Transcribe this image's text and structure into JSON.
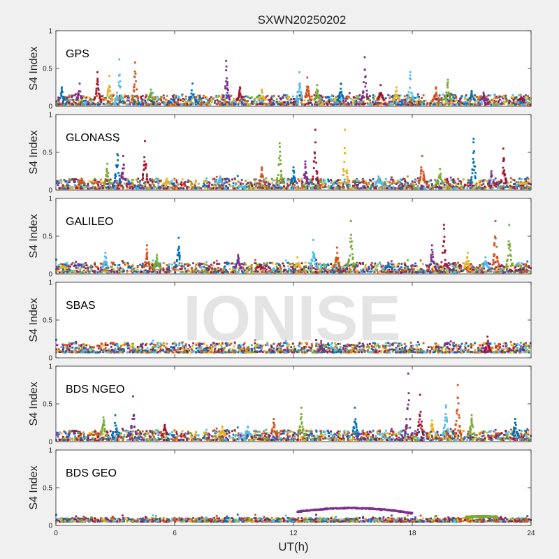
{
  "chart_data": {
    "type": "scatter",
    "title": "SXWN20250202",
    "xlabel": "UT(h)",
    "ylabel": "S4 Index",
    "xlim": [
      0,
      24
    ],
    "ylim": [
      0,
      1
    ],
    "xticks": [
      "0",
      "6",
      "12",
      "18",
      "24"
    ],
    "yticks": [
      "0",
      "0.5",
      "1"
    ],
    "watermark": "IONISE",
    "colors": [
      "#0072BD",
      "#D95319",
      "#EDB120",
      "#7E2F8E",
      "#77AC30",
      "#4DBEEE",
      "#A2142F"
    ],
    "panels": [
      {
        "label": "GPS",
        "baseline_range": [
          0.02,
          0.15
        ],
        "peaks": [
          {
            "x": 0.3,
            "y": 0.25
          },
          {
            "x": 1.2,
            "y": 0.3
          },
          {
            "x": 2.1,
            "y": 0.45
          },
          {
            "x": 2.7,
            "y": 0.4
          },
          {
            "x": 3.2,
            "y": 0.62
          },
          {
            "x": 4.0,
            "y": 0.58
          },
          {
            "x": 4.8,
            "y": 0.22
          },
          {
            "x": 6.9,
            "y": 0.3
          },
          {
            "x": 8.6,
            "y": 0.6
          },
          {
            "x": 9.3,
            "y": 0.25
          },
          {
            "x": 10.4,
            "y": 0.22
          },
          {
            "x": 12.3,
            "y": 0.45
          },
          {
            "x": 12.7,
            "y": 0.38
          },
          {
            "x": 13.2,
            "y": 0.28
          },
          {
            "x": 14.4,
            "y": 0.3
          },
          {
            "x": 15.6,
            "y": 0.65
          },
          {
            "x": 16.4,
            "y": 0.28
          },
          {
            "x": 17.2,
            "y": 0.25
          },
          {
            "x": 17.9,
            "y": 0.45
          },
          {
            "x": 19.2,
            "y": 0.25
          },
          {
            "x": 19.8,
            "y": 0.35
          },
          {
            "x": 21.0,
            "y": 0.2
          },
          {
            "x": 21.6,
            "y": 0.18
          },
          {
            "x": 23.5,
            "y": 0.12
          }
        ]
      },
      {
        "label": "GLONASS",
        "baseline_range": [
          0.02,
          0.15
        ],
        "peaks": [
          {
            "x": 1.3,
            "y": 0.15
          },
          {
            "x": 2.6,
            "y": 0.35
          },
          {
            "x": 3.1,
            "y": 0.65
          },
          {
            "x": 3.4,
            "y": 0.45
          },
          {
            "x": 4.5,
            "y": 0.65
          },
          {
            "x": 5.6,
            "y": 0.15
          },
          {
            "x": 8.3,
            "y": 0.18
          },
          {
            "x": 10.4,
            "y": 0.3
          },
          {
            "x": 11.3,
            "y": 0.62
          },
          {
            "x": 12.0,
            "y": 0.3
          },
          {
            "x": 12.6,
            "y": 0.38
          },
          {
            "x": 13.1,
            "y": 0.8
          },
          {
            "x": 14.6,
            "y": 0.8
          },
          {
            "x": 16.3,
            "y": 0.18
          },
          {
            "x": 18.5,
            "y": 0.45
          },
          {
            "x": 19.4,
            "y": 0.28
          },
          {
            "x": 21.1,
            "y": 0.68
          },
          {
            "x": 22.0,
            "y": 0.25
          },
          {
            "x": 22.6,
            "y": 0.55
          },
          {
            "x": 23.6,
            "y": 0.1
          }
        ]
      },
      {
        "label": "GALILEO",
        "baseline_range": [
          0.02,
          0.15
        ],
        "peaks": [
          {
            "x": 0.4,
            "y": 0.1
          },
          {
            "x": 2.5,
            "y": 0.28
          },
          {
            "x": 4.6,
            "y": 0.38
          },
          {
            "x": 5.1,
            "y": 0.25
          },
          {
            "x": 6.2,
            "y": 0.48
          },
          {
            "x": 9.2,
            "y": 0.25
          },
          {
            "x": 10.3,
            "y": 0.12
          },
          {
            "x": 12.2,
            "y": 0.22
          },
          {
            "x": 13.0,
            "y": 0.45
          },
          {
            "x": 14.2,
            "y": 0.35
          },
          {
            "x": 14.9,
            "y": 0.7
          },
          {
            "x": 16.8,
            "y": 0.12
          },
          {
            "x": 19.0,
            "y": 0.38
          },
          {
            "x": 19.6,
            "y": 0.65
          },
          {
            "x": 20.8,
            "y": 0.28
          },
          {
            "x": 21.7,
            "y": 0.22
          },
          {
            "x": 22.2,
            "y": 0.7
          },
          {
            "x": 22.9,
            "y": 0.65
          }
        ]
      },
      {
        "label": "SBAS",
        "baseline_range": [
          0.07,
          0.2
        ],
        "peaks": [
          {
            "x": 13.4,
            "y": 0.22
          },
          {
            "x": 21.8,
            "y": 0.28
          }
        ]
      },
      {
        "label": "BDS NGEO",
        "baseline_range": [
          0.02,
          0.15
        ],
        "peaks": [
          {
            "x": 2.4,
            "y": 0.32
          },
          {
            "x": 3.0,
            "y": 0.35
          },
          {
            "x": 3.9,
            "y": 0.6
          },
          {
            "x": 5.5,
            "y": 0.22
          },
          {
            "x": 8.4,
            "y": 0.2
          },
          {
            "x": 9.7,
            "y": 0.2
          },
          {
            "x": 11.0,
            "y": 0.3
          },
          {
            "x": 12.4,
            "y": 0.45
          },
          {
            "x": 15.1,
            "y": 0.45
          },
          {
            "x": 17.8,
            "y": 0.9
          },
          {
            "x": 18.4,
            "y": 0.62
          },
          {
            "x": 19.0,
            "y": 0.28
          },
          {
            "x": 19.7,
            "y": 0.48
          },
          {
            "x": 20.3,
            "y": 0.75
          },
          {
            "x": 21.0,
            "y": 0.35
          },
          {
            "x": 23.2,
            "y": 0.3
          }
        ]
      },
      {
        "label": "BDS GEO",
        "baseline_range": [
          0.05,
          0.1
        ],
        "arcs": [
          {
            "x0": 12.2,
            "x1": 18.0,
            "y_start": 0.18,
            "y_mid": 0.23,
            "y_end": 0.16
          },
          {
            "x0": 20.7,
            "x1": 22.3,
            "y_start": 0.11,
            "y_mid": 0.12,
            "y_end": 0.11
          }
        ],
        "peaks": []
      }
    ]
  }
}
